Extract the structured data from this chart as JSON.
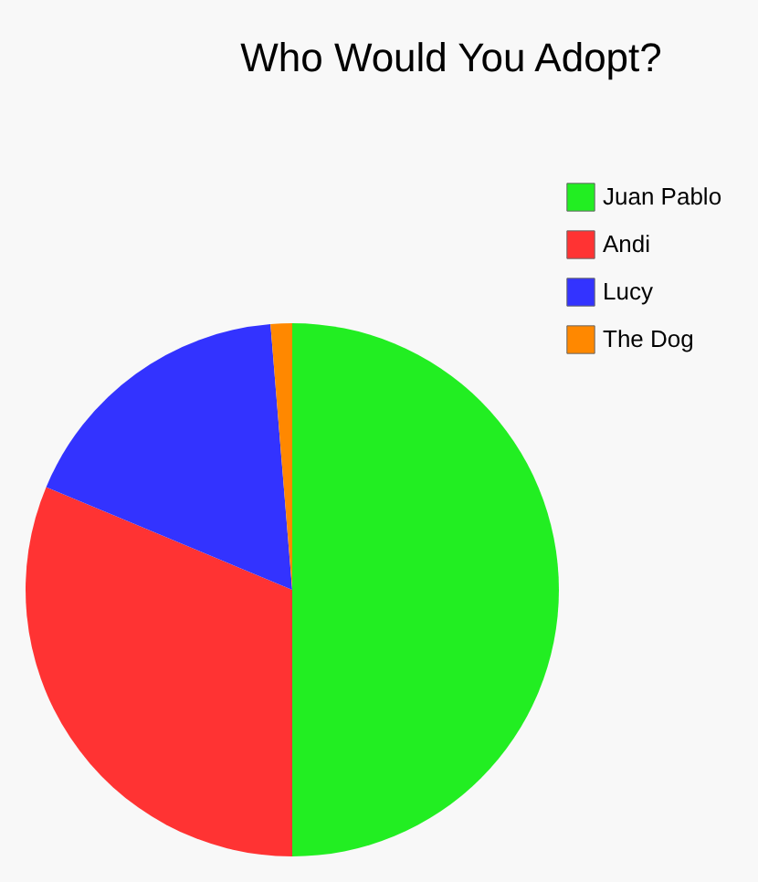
{
  "chart_data": {
    "type": "pie",
    "title": "Who Would You Adopt?",
    "categories": [
      "Juan Pablo",
      "Andi",
      "Lucy",
      "The Dog"
    ],
    "values": [
      50,
      31.3,
      17.4,
      1.3
    ],
    "colors": [
      "#22ee22",
      "#ff3333",
      "#3333ff",
      "#ff8800"
    ],
    "legend": "top right"
  }
}
